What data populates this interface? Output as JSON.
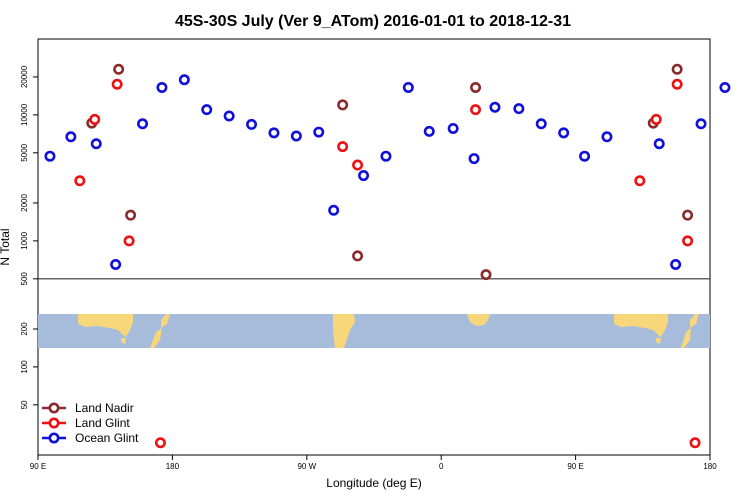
{
  "chart_data": {
    "type": "scatter",
    "title": "45S-30S July (Ver 9_ATom)   2016-01-01 to 2018-12-31",
    "xlabel": "Longitude (deg E)",
    "ylabel": "N Total",
    "xlim": [
      90,
      540
    ],
    "ylim": [
      20,
      40000
    ],
    "yscale": "log",
    "x_ticks": [
      {
        "value": 90,
        "label": "90 E"
      },
      {
        "value": 180,
        "label": "180"
      },
      {
        "value": 270,
        "label": "90 W"
      },
      {
        "value": 360,
        "label": "0"
      },
      {
        "value": 450,
        "label": "90 E"
      },
      {
        "value": 540,
        "label": "180"
      }
    ],
    "y_ticks": [
      {
        "value": 50,
        "label": "50"
      },
      {
        "value": 100,
        "label": "100"
      },
      {
        "value": 200,
        "label": "200"
      },
      {
        "value": 500,
        "label": "500"
      },
      {
        "value": 1000,
        "label": "1000"
      },
      {
        "value": 2000,
        "label": "2000"
      },
      {
        "value": 5000,
        "label": "5000"
      },
      {
        "value": 10000,
        "label": "10000"
      },
      {
        "value": 20000,
        "label": "20000"
      }
    ],
    "reference_line_y": 500,
    "map_strip_y_range": [
      165,
      275
    ],
    "legend_position": "bottom-left",
    "series": [
      {
        "name": "Land Nadir",
        "color": "#8b2a2a",
        "points": [
          {
            "x": 126,
            "y": 8600
          },
          {
            "x": 144,
            "y": 23000
          },
          {
            "x": 152,
            "y": 1600
          },
          {
            "x": 294,
            "y": 12000
          },
          {
            "x": 304,
            "y": 760
          },
          {
            "x": 383,
            "y": 16500
          },
          {
            "x": 390,
            "y": 540
          },
          {
            "x": 502,
            "y": 8600
          },
          {
            "x": 518,
            "y": 23000
          },
          {
            "x": 525,
            "y": 1600
          }
        ]
      },
      {
        "name": "Land Glint",
        "color": "#ee1111",
        "points": [
          {
            "x": 118,
            "y": 3000
          },
          {
            "x": 128,
            "y": 9200
          },
          {
            "x": 143,
            "y": 17500
          },
          {
            "x": 151,
            "y": 1000
          },
          {
            "x": 172,
            "y": 25
          },
          {
            "x": 294,
            "y": 5600
          },
          {
            "x": 304,
            "y": 4000
          },
          {
            "x": 383,
            "y": 11000
          },
          {
            "x": 493,
            "y": 3000
          },
          {
            "x": 504,
            "y": 9200
          },
          {
            "x": 518,
            "y": 17500
          },
          {
            "x": 525,
            "y": 1000
          },
          {
            "x": 530,
            "y": 25
          }
        ]
      },
      {
        "name": "Ocean Glint",
        "color": "#1010dd",
        "points": [
          {
            "x": 98,
            "y": 4700
          },
          {
            "x": 112,
            "y": 6700
          },
          {
            "x": 129,
            "y": 5900
          },
          {
            "x": 142,
            "y": 650
          },
          {
            "x": 160,
            "y": 8500
          },
          {
            "x": 173,
            "y": 16500
          },
          {
            "x": 188,
            "y": 19000
          },
          {
            "x": 203,
            "y": 11000
          },
          {
            "x": 218,
            "y": 9800
          },
          {
            "x": 233,
            "y": 8400
          },
          {
            "x": 248,
            "y": 7200
          },
          {
            "x": 263,
            "y": 6800
          },
          {
            "x": 278,
            "y": 7300
          },
          {
            "x": 288,
            "y": 1750
          },
          {
            "x": 308,
            "y": 3300
          },
          {
            "x": 323,
            "y": 4700
          },
          {
            "x": 338,
            "y": 16500
          },
          {
            "x": 352,
            "y": 7400
          },
          {
            "x": 368,
            "y": 7800
          },
          {
            "x": 382,
            "y": 4500
          },
          {
            "x": 396,
            "y": 11500
          },
          {
            "x": 412,
            "y": 11200
          },
          {
            "x": 427,
            "y": 8500
          },
          {
            "x": 442,
            "y": 7200
          },
          {
            "x": 456,
            "y": 4700
          },
          {
            "x": 471,
            "y": 6700
          },
          {
            "x": 506,
            "y": 5900
          },
          {
            "x": 517,
            "y": 650
          },
          {
            "x": 534,
            "y": 8500
          },
          {
            "x": 550,
            "y": 16500
          }
        ]
      }
    ]
  }
}
